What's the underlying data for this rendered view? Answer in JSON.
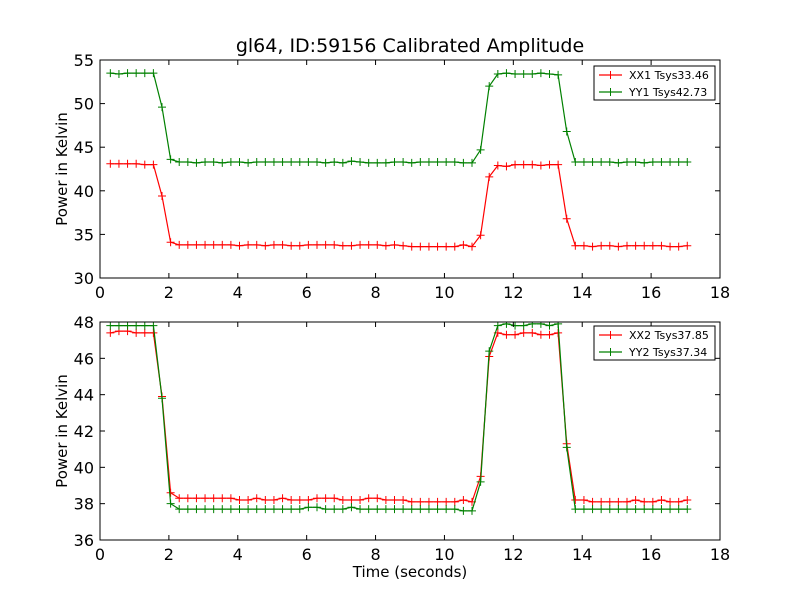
{
  "figure": {
    "title": "gl64, ID:59156 Calibrated Amplitude"
  },
  "chart_data": [
    {
      "type": "line",
      "title": "gl64, ID:59156 Calibrated Amplitude",
      "xlabel": "",
      "ylabel": "Power in Kelvin",
      "xlim": [
        0,
        18
      ],
      "ylim": [
        30,
        55
      ],
      "x_ticks": [
        "0",
        "2",
        "4",
        "6",
        "8",
        "10",
        "12",
        "14",
        "16",
        "18"
      ],
      "y_ticks": [
        "30",
        "35",
        "40",
        "45",
        "50",
        "55"
      ],
      "grid": false,
      "legend_position": "top-right",
      "x": [
        0.3,
        0.55,
        0.8,
        1.05,
        1.3,
        1.55,
        1.8,
        2.05,
        2.3,
        2.55,
        2.8,
        3.05,
        3.3,
        3.55,
        3.8,
        4.05,
        4.3,
        4.55,
        4.8,
        5.05,
        5.3,
        5.55,
        5.8,
        6.05,
        6.3,
        6.55,
        6.8,
        7.05,
        7.3,
        7.55,
        7.8,
        8.05,
        8.3,
        8.55,
        8.8,
        9.05,
        9.3,
        9.55,
        9.8,
        10.05,
        10.3,
        10.55,
        10.8,
        11.05,
        11.3,
        11.55,
        11.8,
        12.05,
        12.3,
        12.55,
        12.8,
        13.05,
        13.3,
        13.55,
        13.8,
        14.05,
        14.3,
        14.55,
        14.8,
        15.05,
        15.3,
        15.55,
        15.8,
        16.05,
        16.3,
        16.55,
        16.8,
        17.05
      ],
      "series": [
        {
          "name": "XX1 Tsys33.46",
          "color": "#ff0000",
          "values": [
            43.1,
            43.1,
            43.1,
            43.1,
            43.0,
            43.0,
            39.4,
            34.1,
            33.8,
            33.8,
            33.8,
            33.8,
            33.8,
            33.8,
            33.8,
            33.7,
            33.8,
            33.8,
            33.7,
            33.8,
            33.8,
            33.7,
            33.7,
            33.8,
            33.8,
            33.8,
            33.8,
            33.7,
            33.7,
            33.8,
            33.8,
            33.8,
            33.7,
            33.8,
            33.7,
            33.6,
            33.6,
            33.6,
            33.6,
            33.6,
            33.6,
            33.8,
            33.6,
            34.9,
            41.6,
            42.9,
            42.8,
            43.0,
            43.0,
            43.0,
            42.9,
            43.0,
            43.0,
            36.8,
            33.7,
            33.7,
            33.6,
            33.7,
            33.7,
            33.6,
            33.7,
            33.7,
            33.7,
            33.7,
            33.7,
            33.6,
            33.6,
            33.7
          ]
        },
        {
          "name": "YY1 Tsys42.73",
          "color": "#008000",
          "values": [
            53.5,
            53.4,
            53.5,
            53.5,
            53.5,
            53.5,
            49.6,
            43.6,
            43.3,
            43.3,
            43.2,
            43.3,
            43.3,
            43.2,
            43.3,
            43.3,
            43.2,
            43.3,
            43.3,
            43.3,
            43.3,
            43.3,
            43.3,
            43.3,
            43.3,
            43.2,
            43.3,
            43.2,
            43.4,
            43.3,
            43.2,
            43.2,
            43.2,
            43.3,
            43.3,
            43.2,
            43.3,
            43.3,
            43.3,
            43.3,
            43.3,
            43.2,
            43.2,
            44.7,
            52.0,
            53.4,
            53.5,
            53.4,
            53.4,
            53.4,
            53.5,
            53.4,
            53.3,
            46.8,
            43.3,
            43.3,
            43.3,
            43.3,
            43.3,
            43.2,
            43.3,
            43.3,
            43.2,
            43.3,
            43.3,
            43.3,
            43.3,
            43.3
          ]
        }
      ]
    },
    {
      "type": "line",
      "title": "",
      "xlabel": "Time (seconds)",
      "ylabel": "Power in Kelvin",
      "xlim": [
        0,
        18
      ],
      "ylim": [
        36,
        48
      ],
      "x_ticks": [
        "0",
        "2",
        "4",
        "6",
        "8",
        "10",
        "12",
        "14",
        "16",
        "18"
      ],
      "y_ticks": [
        "36",
        "38",
        "40",
        "42",
        "44",
        "46",
        "48"
      ],
      "grid": false,
      "legend_position": "top-right",
      "x": [
        0.3,
        0.55,
        0.8,
        1.05,
        1.3,
        1.55,
        1.8,
        2.05,
        2.3,
        2.55,
        2.8,
        3.05,
        3.3,
        3.55,
        3.8,
        4.05,
        4.3,
        4.55,
        4.8,
        5.05,
        5.3,
        5.55,
        5.8,
        6.05,
        6.3,
        6.55,
        6.8,
        7.05,
        7.3,
        7.55,
        7.8,
        8.05,
        8.3,
        8.55,
        8.8,
        9.05,
        9.3,
        9.55,
        9.8,
        10.05,
        10.3,
        10.55,
        10.8,
        11.05,
        11.3,
        11.55,
        11.8,
        12.05,
        12.3,
        12.55,
        12.8,
        13.05,
        13.3,
        13.55,
        13.8,
        14.05,
        14.3,
        14.55,
        14.8,
        15.05,
        15.3,
        15.55,
        15.8,
        16.05,
        16.3,
        16.55,
        16.8,
        17.05
      ],
      "series": [
        {
          "name": "XX2 Tsys37.85",
          "color": "#ff0000",
          "values": [
            47.4,
            47.5,
            47.5,
            47.4,
            47.4,
            47.4,
            43.9,
            38.6,
            38.3,
            38.3,
            38.3,
            38.3,
            38.3,
            38.3,
            38.3,
            38.2,
            38.2,
            38.3,
            38.2,
            38.2,
            38.3,
            38.2,
            38.2,
            38.2,
            38.3,
            38.3,
            38.3,
            38.2,
            38.2,
            38.2,
            38.3,
            38.3,
            38.2,
            38.2,
            38.2,
            38.1,
            38.1,
            38.1,
            38.1,
            38.1,
            38.1,
            38.2,
            38.1,
            39.5,
            46.1,
            47.4,
            47.3,
            47.3,
            47.4,
            47.4,
            47.3,
            47.3,
            47.4,
            41.3,
            38.2,
            38.2,
            38.1,
            38.1,
            38.1,
            38.1,
            38.1,
            38.2,
            38.1,
            38.1,
            38.2,
            38.1,
            38.1,
            38.2
          ]
        },
        {
          "name": "YY2 Tsys37.34",
          "color": "#008000",
          "values": [
            47.8,
            47.8,
            47.8,
            47.8,
            47.8,
            47.8,
            43.8,
            38.0,
            37.7,
            37.7,
            37.7,
            37.7,
            37.7,
            37.7,
            37.7,
            37.7,
            37.7,
            37.7,
            37.7,
            37.7,
            37.7,
            37.7,
            37.7,
            37.8,
            37.8,
            37.7,
            37.7,
            37.7,
            37.8,
            37.7,
            37.7,
            37.7,
            37.7,
            37.7,
            37.7,
            37.7,
            37.7,
            37.7,
            37.7,
            37.7,
            37.7,
            37.6,
            37.6,
            39.2,
            46.4,
            47.8,
            47.9,
            47.8,
            47.8,
            47.9,
            47.9,
            47.8,
            47.9,
            41.1,
            37.7,
            37.7,
            37.7,
            37.7,
            37.7,
            37.7,
            37.7,
            37.7,
            37.7,
            37.7,
            37.7,
            37.7,
            37.7,
            37.7
          ]
        }
      ]
    }
  ]
}
